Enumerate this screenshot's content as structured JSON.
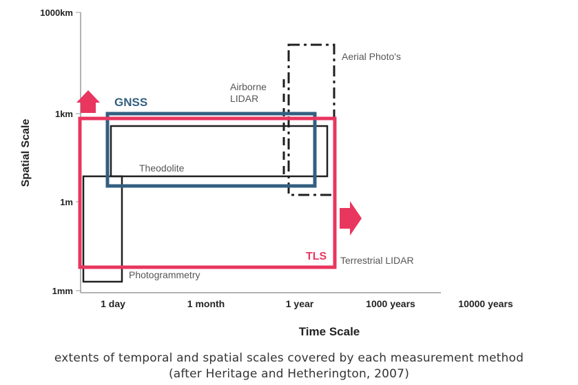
{
  "axes": {
    "y_title": "Spatial Scale",
    "x_title": "Time Scale",
    "y_ticks": [
      "1000km",
      "1km",
      "1m",
      "1mm"
    ],
    "x_ticks": [
      "1 day",
      "1 month",
      "1 year",
      "1000 years",
      "10000 years"
    ]
  },
  "methods": {
    "aerial": "Aerial Photo's",
    "airborne_line1": "Airborne",
    "airborne_line2": "LIDAR",
    "theodolite": "Theodolite",
    "photogrammetry": "Photogrammetry",
    "terrestrial": "Terrestrial LIDAR",
    "gnss": "GNSS",
    "tls": "TLS"
  },
  "colors": {
    "gnss": "#335f80",
    "tls": "#e8365f",
    "line": "#1f1f1f",
    "axis": "#999999",
    "label": "#555555"
  },
  "caption": {
    "line1": "extents of temporal and spatial scales covered by each measurement method",
    "line2": "(after Heritage and Hetherington, 2007)"
  }
}
